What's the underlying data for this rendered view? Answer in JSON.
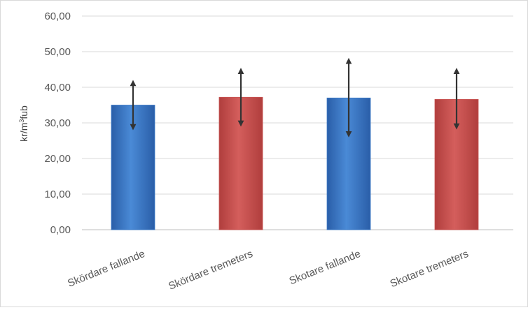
{
  "chart_data": {
    "type": "bar",
    "title": "",
    "xlabel": "",
    "ylabel": "kr/m³fub",
    "ylabel_parts": [
      "kr/m",
      "3",
      "fub"
    ],
    "categories": [
      "Skördare fallande",
      "Skördare tremeters",
      "Skotare fallande",
      "Skotare tremeters"
    ],
    "values": [
      35.0,
      37.2,
      37.0,
      36.6
    ],
    "error_bars": [
      {
        "low": 28.8,
        "high": 41.2
      },
      {
        "low": 29.8,
        "high": 44.6
      },
      {
        "low": 26.8,
        "high": 47.4
      },
      {
        "low": 29.0,
        "high": 44.6
      }
    ],
    "bar_colors": [
      "#3d7bc8",
      "#c85251",
      "#3d7bc8",
      "#c85251"
    ],
    "ylim": [
      0,
      60
    ],
    "yticks": [
      "0,00",
      "10,00",
      "20,00",
      "30,00",
      "40,00",
      "50,00",
      "60,00"
    ],
    "ytick_values": [
      0,
      10,
      20,
      30,
      40,
      50,
      60
    ],
    "grid": true,
    "legend": "none"
  }
}
